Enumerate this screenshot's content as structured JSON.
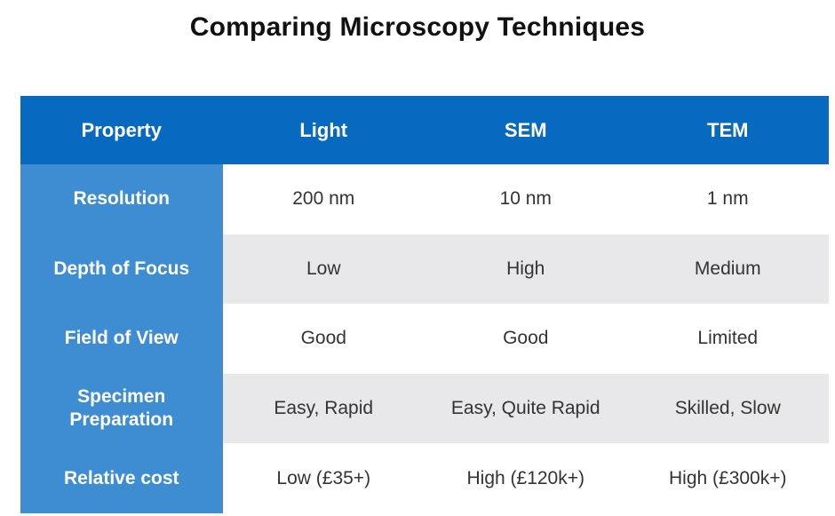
{
  "title": "Comparing Microscopy Techniques",
  "table": {
    "columns": [
      "Property",
      "Light",
      "SEM",
      "TEM"
    ],
    "rows": [
      {
        "label": "Resolution",
        "values": [
          "200 nm",
          "10 nm",
          "1 nm"
        ]
      },
      {
        "label": "Depth of Focus",
        "values": [
          "Low",
          "High",
          "Medium"
        ]
      },
      {
        "label": "Field of View",
        "values": [
          "Good",
          "Good",
          "Limited"
        ]
      },
      {
        "label": "Specimen\nPreparation",
        "values": [
          "Easy, Rapid",
          "Easy, Quite Rapid",
          "Skilled, Slow"
        ]
      },
      {
        "label": "Relative cost",
        "values": [
          "Low (£35+)",
          "High (£120k+)",
          "High (£300k+)"
        ]
      }
    ],
    "colors": {
      "header_bg": "#0769BF",
      "header_text": "#FFFFFF",
      "label_bg": "#3E8DD3",
      "row_bg": "#FFFFFF",
      "row_alt_bg": "#E8E8EA",
      "cell_text": "#333333"
    }
  }
}
